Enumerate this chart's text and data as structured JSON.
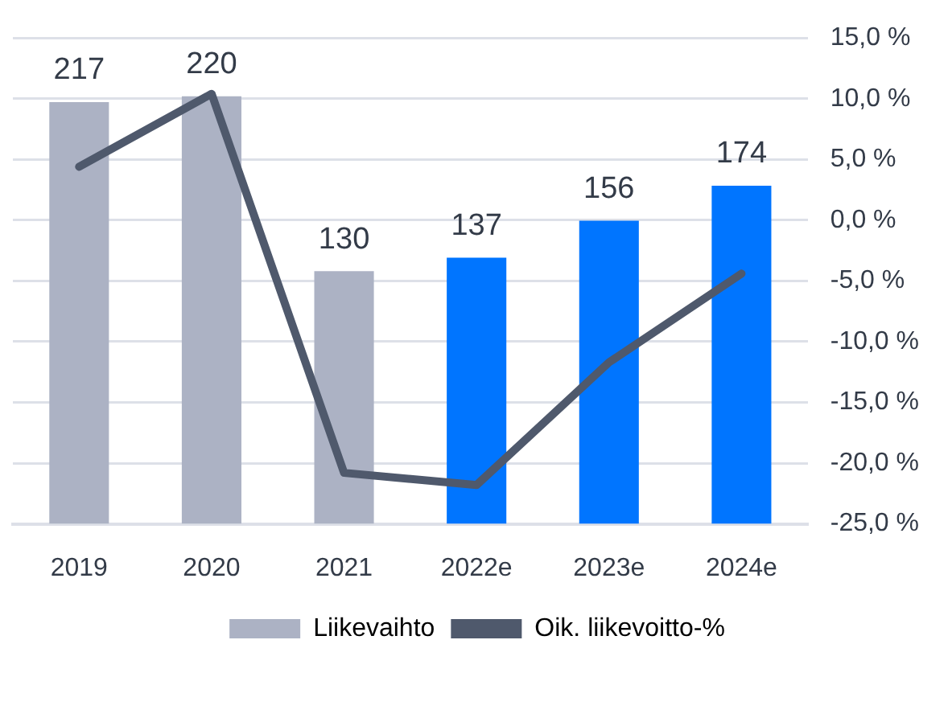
{
  "chart_data": {
    "type": "bar",
    "categories": [
      "2019",
      "2020",
      "2021",
      "2022e",
      "2023e",
      "2024e"
    ],
    "series": [
      {
        "name": "Liikevaihto",
        "colors": [
          "#acb2c4",
          "#acb2c4",
          "#acb2c4",
          "#0075ff",
          "#0075ff",
          "#0075ff"
        ],
        "values": [
          217,
          220,
          130,
          137,
          156,
          174
        ],
        "value_labels": [
          "217",
          "220",
          "130",
          "137",
          "156",
          "174"
        ]
      },
      {
        "name": "Oik. liikevoitto-%",
        "type": "line",
        "axis": "y2",
        "color": "#4f596c",
        "values": [
          4.4,
          10.4,
          -20.8,
          -21.8,
          -11.7,
          -4.4
        ]
      }
    ],
    "ylim": [
      0,
      250
    ],
    "y2lim": [
      -25,
      15
    ],
    "y2ticks": [
      {
        "value": 15,
        "label": "15,0 %"
      },
      {
        "value": 10,
        "label": "10,0 %"
      },
      {
        "value": 5,
        "label": "5,0 %"
      },
      {
        "value": 0,
        "label": "0,0 %"
      },
      {
        "value": -5,
        "label": "-5,0 %"
      },
      {
        "value": -10,
        "label": "-10,0 %"
      },
      {
        "value": -15,
        "label": "-15,0 %"
      },
      {
        "value": -20,
        "label": "-20,0 %"
      },
      {
        "value": -25,
        "label": "-25,0 %"
      }
    ],
    "grid": "y2",
    "legend": "bottom",
    "marker": "none"
  }
}
